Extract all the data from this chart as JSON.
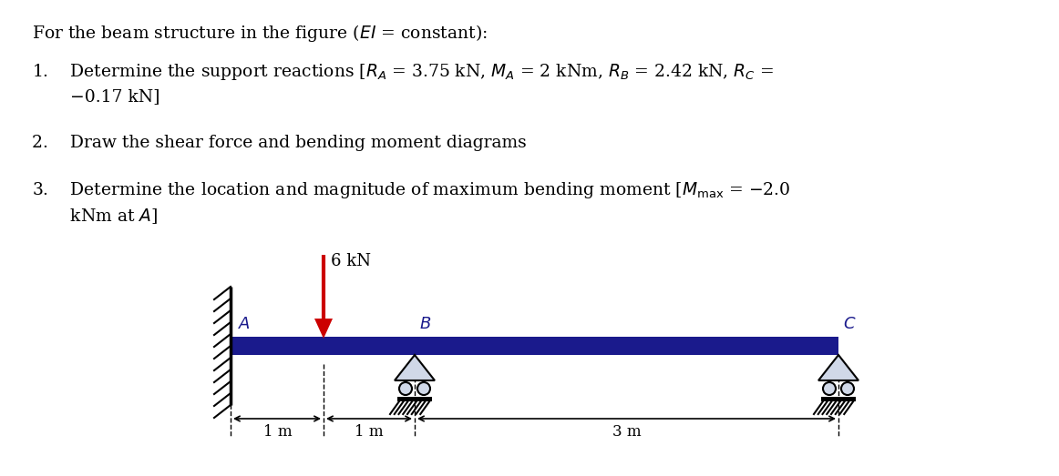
{
  "bg_color": "#ffffff",
  "beam_color": "#1a1a8c",
  "text_color": "#000000",
  "label_color": "#1a1a8c",
  "red_color": "#cc0000",
  "font_size_text": 13.5,
  "font_size_diagram": 13,
  "A_label": "A",
  "B_label": "B",
  "C_label": "C",
  "load_label": "6 kN",
  "dim1_label": "1 m",
  "dim2_label": "1 m",
  "dim3_label": "3 m",
  "line1": "For the beam structure in the figure ($EI$ = constant):",
  "line2a": "1.    Determine the support reactions [$R_A$ = 3.75 kN, $M_A$ = 2 kNm, $R_B$ = 2.42 kN, $R_C$ =",
  "line2b": "       −0.17 kN]",
  "line3": "2.    Draw the shear force and bending moment diagrams",
  "line4a": "3.    Determine the location and magnitude of maximum bending moment [$M_{\\mathrm{max}}$ = −2.0",
  "line4b": "       kNm at $A$]"
}
